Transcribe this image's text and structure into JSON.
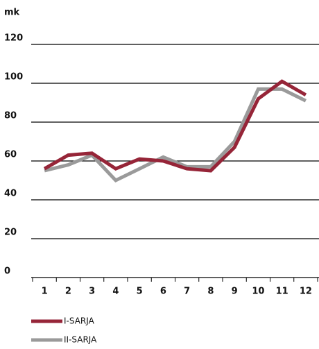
{
  "chart_data": {
    "type": "line",
    "y_label": "mk",
    "categories": [
      "1",
      "2",
      "3",
      "4",
      "5",
      "6",
      "7",
      "8",
      "9",
      "10",
      "11",
      "12"
    ],
    "series": [
      {
        "name": "I-SARJA",
        "color": "#962538",
        "values": [
          56,
          63,
          64,
          56,
          61,
          60,
          56,
          55,
          67,
          92,
          101,
          94
        ]
      },
      {
        "name": "II-SARJA",
        "color": "#9a9a9a",
        "values": [
          55,
          58,
          63,
          50,
          56,
          62,
          57,
          57,
          70,
          97,
          97,
          91
        ]
      }
    ],
    "ylim": [
      0,
      120
    ],
    "yticks": [
      0,
      20,
      40,
      60,
      80,
      100,
      120
    ],
    "grid": true
  }
}
